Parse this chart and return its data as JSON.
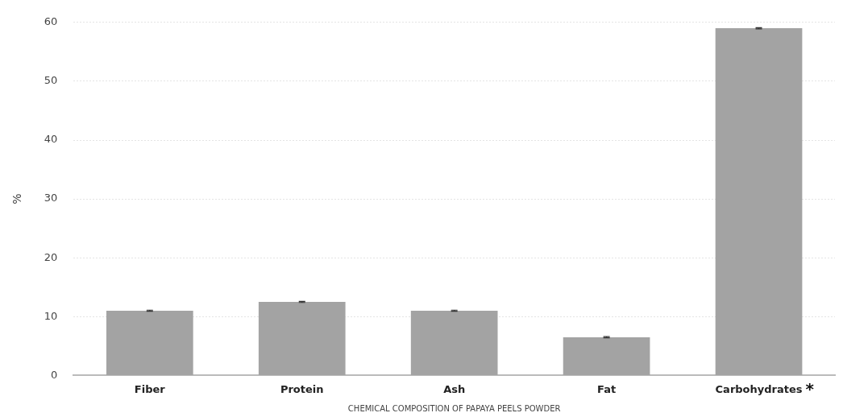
{
  "chart_data": {
    "type": "bar",
    "xlabel": "CHEMICAL COMPOSITION OF PAPAYA PEELS POWDER",
    "ylabel": "%",
    "categories": [
      "Fiber",
      "Protein",
      "Ash",
      "Fat",
      "Carbohydrates"
    ],
    "values": [
      11,
      12.5,
      11,
      6.5,
      59
    ],
    "errors": [
      0.1,
      0.1,
      0.1,
      0.1,
      0.1
    ],
    "color": "#a3a3a3",
    "ylim": [
      0,
      60
    ],
    "yticks": [
      0,
      10,
      20,
      30,
      40,
      50,
      60
    ],
    "grid": "y",
    "annotations": [
      "*"
    ]
  }
}
